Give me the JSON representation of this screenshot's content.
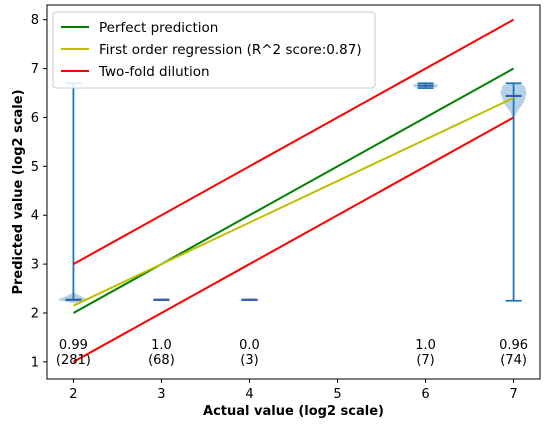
{
  "chart_data": {
    "type": "line",
    "title": "",
    "xlabel": "Actual value (log2 scale)",
    "ylabel": "Predicted value (log2 scale)",
    "xlim": [
      1.7,
      7.3
    ],
    "ylim": [
      0.65,
      8.3
    ],
    "x_ticks": [
      2,
      3,
      4,
      5,
      6,
      7
    ],
    "y_ticks": [
      1,
      2,
      3,
      4,
      5,
      6,
      7,
      8
    ],
    "grid": false,
    "legend_position": "top-left",
    "series": [
      {
        "name": "Perfect prediction",
        "color": "#008000",
        "x": [
          2,
          7
        ],
        "y": [
          2,
          7
        ]
      },
      {
        "name": "First order regression (R^2 score:0.87)",
        "color": "#bfbf00",
        "x": [
          2,
          7
        ],
        "y": [
          2.15,
          6.4
        ]
      },
      {
        "name": "Two-fold dilution",
        "color": "#ff0000",
        "x": [
          2,
          7
        ],
        "y": [
          3,
          8
        ]
      },
      {
        "name": "",
        "color": "#ff0000",
        "x": [
          2,
          7
        ],
        "y": [
          1,
          6
        ]
      }
    ],
    "distributions": [
      {
        "x": 2,
        "min": 2.27,
        "max": 6.7,
        "median": 2.27,
        "mean": 2.3
      },
      {
        "x": 3,
        "min": 2.27,
        "max": 2.27,
        "median": 2.27,
        "mean": 2.27
      },
      {
        "x": 4,
        "min": 2.27,
        "max": 2.27,
        "median": 2.27,
        "mean": 2.27
      },
      {
        "x": 6,
        "min": 6.6,
        "max": 6.7,
        "median": 6.65,
        "mean": 6.65
      },
      {
        "x": 7,
        "min": 2.25,
        "max": 6.7,
        "median": 6.44,
        "mean": 6.4
      }
    ],
    "annotations": [
      {
        "x": 2,
        "score": "0.99",
        "count": "(281)"
      },
      {
        "x": 3,
        "score": "1.0",
        "count": "(68)"
      },
      {
        "x": 4,
        "score": "0.0",
        "count": "(3)"
      },
      {
        "x": 6,
        "score": "1.0",
        "count": "(7)"
      },
      {
        "x": 7,
        "score": "0.96",
        "count": "(74)"
      }
    ],
    "violin_color": "#9cc3e0",
    "whisker_color": "#1f77b4"
  }
}
